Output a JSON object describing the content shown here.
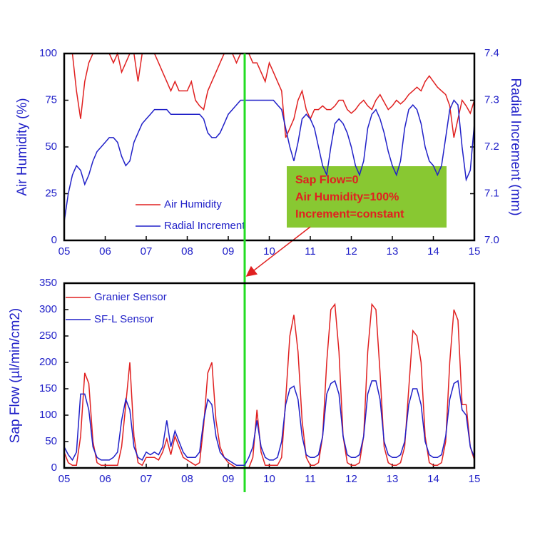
{
  "chart_data": [
    {
      "type": "line",
      "ylabel": "Air Humidity (%)",
      "y2label": "Radial Increment (mm)",
      "x": [
        5.0,
        5.1,
        5.2,
        5.3,
        5.4,
        5.5,
        5.6,
        5.7,
        5.8,
        5.9,
        6.0,
        6.1,
        6.2,
        6.3,
        6.4,
        6.5,
        6.6,
        6.7,
        6.8,
        6.9,
        7.0,
        7.1,
        7.2,
        7.3,
        7.4,
        7.5,
        7.6,
        7.7,
        7.8,
        7.9,
        8.0,
        8.1,
        8.2,
        8.3,
        8.4,
        8.5,
        8.6,
        8.7,
        8.8,
        8.9,
        9.0,
        9.1,
        9.2,
        9.3,
        9.4,
        9.5,
        9.6,
        9.7,
        9.8,
        9.9,
        10.0,
        10.1,
        10.2,
        10.3,
        10.4,
        10.5,
        10.6,
        10.7,
        10.8,
        10.9,
        11.0,
        11.1,
        11.2,
        11.3,
        11.4,
        11.5,
        11.6,
        11.7,
        11.8,
        11.9,
        12.0,
        12.1,
        12.2,
        12.3,
        12.4,
        12.5,
        12.6,
        12.7,
        12.8,
        12.9,
        13.0,
        13.1,
        13.2,
        13.3,
        13.4,
        13.5,
        13.6,
        13.7,
        13.8,
        13.9,
        14.0,
        14.1,
        14.2,
        14.3,
        14.4,
        14.5,
        14.6,
        14.7,
        14.8,
        14.9,
        15.0
      ],
      "series": [
        {
          "name": "Air Humidity",
          "color": "#e02020",
          "values": [
            100,
            100,
            100,
            80,
            65,
            85,
            95,
            100,
            100,
            100,
            100,
            100,
            95,
            100,
            90,
            95,
            100,
            100,
            85,
            100,
            100,
            100,
            100,
            95,
            90,
            85,
            80,
            85,
            80,
            80,
            80,
            85,
            75,
            72,
            70,
            80,
            85,
            90,
            95,
            100,
            100,
            100,
            95,
            100,
            100,
            100,
            95,
            95,
            90,
            85,
            95,
            90,
            85,
            80,
            55,
            60,
            65,
            75,
            80,
            70,
            65,
            70,
            70,
            72,
            70,
            70,
            72,
            75,
            75,
            70,
            68,
            70,
            73,
            75,
            72,
            70,
            75,
            78,
            74,
            70,
            72,
            75,
            73,
            75,
            78,
            80,
            82,
            80,
            85,
            88,
            85,
            82,
            80,
            78,
            72,
            55,
            65,
            75,
            72,
            68,
            75
          ]
        },
        {
          "name": "Radial Increment",
          "color": "#2020c8",
          "axis": "y2",
          "values": [
            7.04,
            7.1,
            7.14,
            7.16,
            7.15,
            7.12,
            7.14,
            7.17,
            7.19,
            7.2,
            7.21,
            7.22,
            7.22,
            7.21,
            7.18,
            7.16,
            7.17,
            7.21,
            7.23,
            7.25,
            7.26,
            7.27,
            7.28,
            7.28,
            7.28,
            7.28,
            7.27,
            7.27,
            7.27,
            7.27,
            7.27,
            7.27,
            7.27,
            7.27,
            7.26,
            7.23,
            7.22,
            7.22,
            7.23,
            7.25,
            7.27,
            7.28,
            7.29,
            7.3,
            7.3,
            7.3,
            7.3,
            7.3,
            7.3,
            7.3,
            7.3,
            7.3,
            7.29,
            7.28,
            7.24,
            7.2,
            7.17,
            7.21,
            7.26,
            7.27,
            7.26,
            7.24,
            7.2,
            7.16,
            7.14,
            7.2,
            7.25,
            7.26,
            7.25,
            7.23,
            7.2,
            7.16,
            7.14,
            7.17,
            7.24,
            7.27,
            7.28,
            7.26,
            7.23,
            7.19,
            7.16,
            7.14,
            7.17,
            7.24,
            7.28,
            7.29,
            7.28,
            7.25,
            7.2,
            7.17,
            7.16,
            7.14,
            7.16,
            7.22,
            7.28,
            7.3,
            7.29,
            7.2,
            7.13,
            7.15,
            7.25
          ]
        }
      ],
      "xlim": [
        5,
        15
      ],
      "xticks": [
        {
          "value": 5,
          "label": "05"
        },
        {
          "value": 6,
          "label": "06"
        },
        {
          "value": 7,
          "label": "07"
        },
        {
          "value": 8,
          "label": "08"
        },
        {
          "value": 9,
          "label": "09"
        },
        10,
        11,
        12,
        13,
        14,
        15
      ],
      "ylim": [
        0,
        100
      ],
      "yticks": [
        0,
        25,
        50,
        75,
        100
      ],
      "y2lim": [
        7,
        7.4
      ],
      "y2ticks": [
        {
          "value": 7,
          "label": "7.0"
        },
        7.1,
        7.2,
        7.3,
        7.4
      ],
      "legend": "lower left",
      "annotation": [
        "Sap Flow=0",
        "Air Humidity=100%",
        "Increment=constant"
      ],
      "vline": {
        "x": 9.4,
        "color": "#22dd22"
      }
    },
    {
      "type": "line",
      "ylabel": "Sap Flow (µl/min/cm2)",
      "x": [
        5.0,
        5.1,
        5.2,
        5.3,
        5.4,
        5.5,
        5.6,
        5.7,
        5.8,
        5.9,
        6.0,
        6.1,
        6.2,
        6.3,
        6.4,
        6.5,
        6.6,
        6.7,
        6.8,
        6.9,
        7.0,
        7.1,
        7.2,
        7.3,
        7.4,
        7.5,
        7.6,
        7.7,
        7.8,
        7.9,
        8.0,
        8.1,
        8.2,
        8.3,
        8.4,
        8.5,
        8.6,
        8.7,
        8.8,
        8.9,
        9.0,
        9.1,
        9.2,
        9.3,
        9.4,
        9.5,
        9.6,
        9.7,
        9.8,
        9.9,
        10.0,
        10.1,
        10.2,
        10.3,
        10.4,
        10.5,
        10.6,
        10.7,
        10.8,
        10.9,
        11.0,
        11.1,
        11.2,
        11.3,
        11.4,
        11.5,
        11.6,
        11.7,
        11.8,
        11.9,
        12.0,
        12.1,
        12.2,
        12.3,
        12.4,
        12.5,
        12.6,
        12.7,
        12.8,
        12.9,
        13.0,
        13.1,
        13.2,
        13.3,
        13.4,
        13.5,
        13.6,
        13.7,
        13.8,
        13.9,
        14.0,
        14.1,
        14.2,
        14.3,
        14.4,
        14.5,
        14.6,
        14.7,
        14.8,
        14.9,
        15.0
      ],
      "series": [
        {
          "name": "Granier Sensor",
          "color": "#e02020",
          "values": [
            30,
            10,
            5,
            5,
            60,
            180,
            160,
            50,
            10,
            5,
            5,
            5,
            5,
            5,
            40,
            120,
            200,
            60,
            10,
            5,
            20,
            20,
            20,
            15,
            30,
            55,
            25,
            60,
            40,
            20,
            15,
            10,
            5,
            10,
            80,
            180,
            200,
            90,
            40,
            20,
            10,
            5,
            0,
            0,
            0,
            0,
            20,
            110,
            30,
            5,
            5,
            5,
            5,
            20,
            130,
            250,
            290,
            220,
            90,
            20,
            5,
            5,
            10,
            60,
            200,
            300,
            310,
            220,
            60,
            10,
            5,
            5,
            10,
            60,
            220,
            310,
            300,
            180,
            40,
            10,
            5,
            5,
            10,
            40,
            150,
            260,
            250,
            200,
            60,
            10,
            5,
            5,
            10,
            50,
            200,
            300,
            280,
            120,
            120,
            40,
            15
          ]
        },
        {
          "name": "SF-L Sensor",
          "color": "#2020c8",
          "values": [
            40,
            25,
            15,
            30,
            140,
            140,
            110,
            40,
            20,
            15,
            15,
            15,
            20,
            30,
            90,
            130,
            110,
            40,
            20,
            15,
            30,
            25,
            30,
            25,
            40,
            90,
            40,
            70,
            50,
            30,
            20,
            20,
            20,
            30,
            90,
            130,
            120,
            60,
            30,
            20,
            15,
            10,
            5,
            5,
            5,
            20,
            40,
            90,
            40,
            20,
            15,
            15,
            20,
            50,
            120,
            150,
            155,
            130,
            60,
            25,
            20,
            20,
            25,
            60,
            140,
            160,
            165,
            140,
            60,
            25,
            20,
            20,
            25,
            60,
            140,
            165,
            165,
            130,
            50,
            25,
            20,
            20,
            25,
            50,
            120,
            150,
            150,
            120,
            50,
            25,
            20,
            20,
            25,
            60,
            130,
            160,
            165,
            110,
            100,
            40,
            20
          ]
        }
      ],
      "xlim": [
        5,
        15
      ],
      "xticks": [
        {
          "value": 5,
          "label": "05"
        },
        {
          "value": 6,
          "label": "06"
        },
        {
          "value": 7,
          "label": "07"
        },
        {
          "value": 8,
          "label": "08"
        },
        {
          "value": 9,
          "label": "09"
        },
        10,
        11,
        12,
        13,
        14,
        15
      ],
      "ylim": [
        0,
        350
      ],
      "yticks": [
        0,
        50,
        100,
        150,
        200,
        250,
        300,
        350
      ],
      "legend": "upper left"
    }
  ]
}
